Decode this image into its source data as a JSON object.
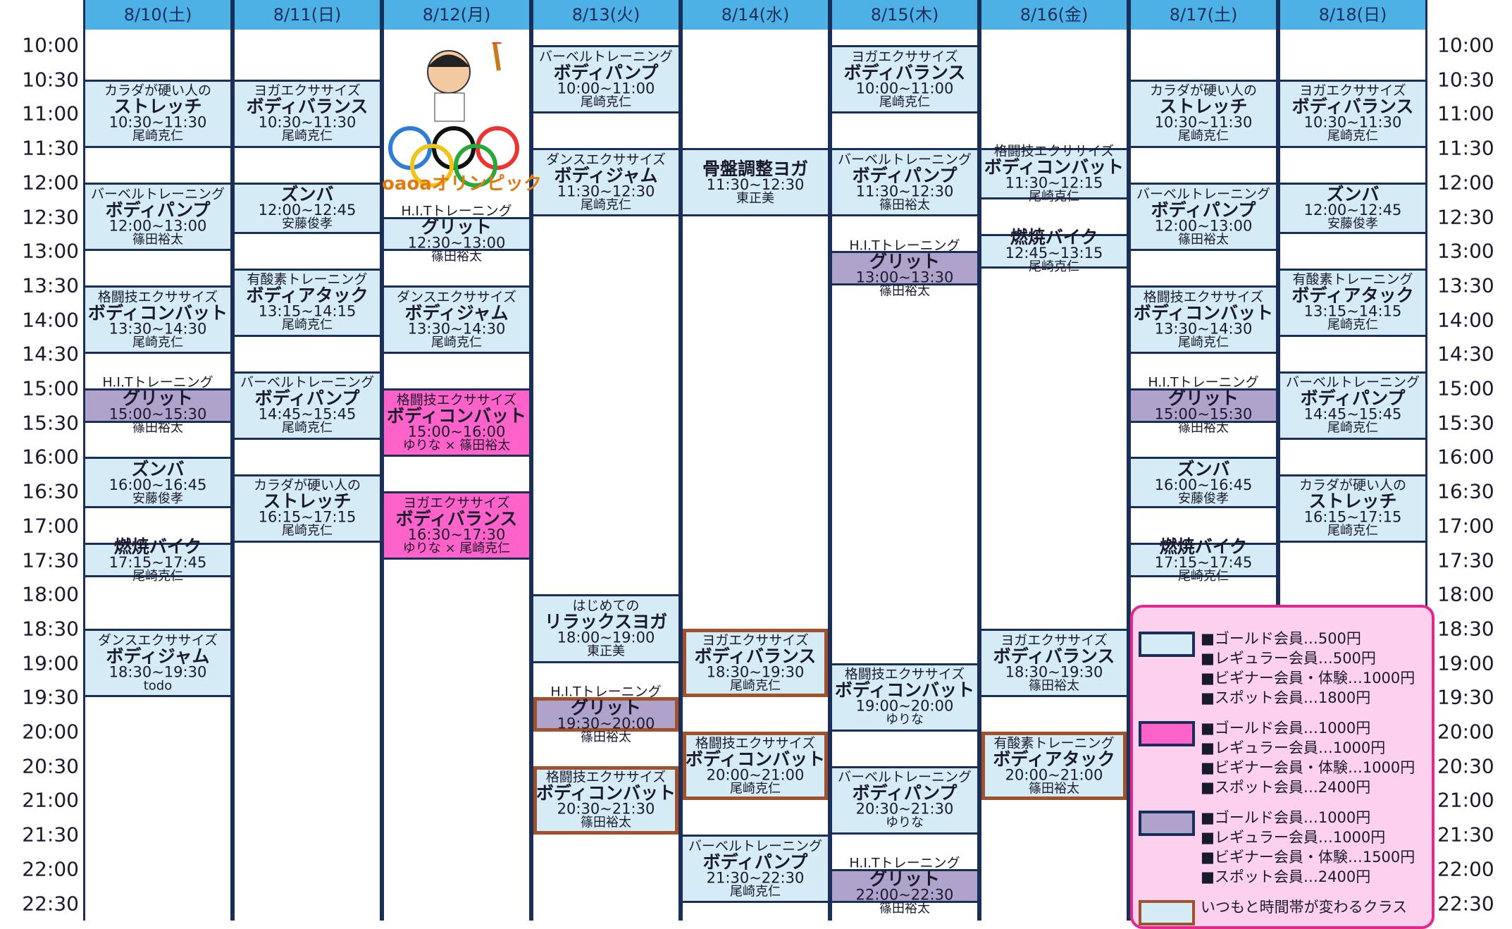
{
  "times": [
    "10:00",
    "10:30",
    "11:00",
    "11:30",
    "12:00",
    "12:30",
    "13:00",
    "13:30",
    "14:00",
    "14:30",
    "15:00",
    "15:30",
    "16:00",
    "16:30",
    "17:00",
    "17:30",
    "18:00",
    "18:30",
    "19:00",
    "19:30",
    "20:00",
    "20:30",
    "21:00",
    "21:30",
    "22:00",
    "22:30"
  ],
  "days": [
    {
      "date": "8/10(土)",
      "classes": [
        {
          "category": "カラダが硬い人の",
          "name": "ストレッチ",
          "time": "10:30~11:30",
          "instructor": "尾崎克仁",
          "color": "blue"
        },
        {
          "category": "バーベルトレーニング",
          "name": "ボディパンプ",
          "time": "12:00~13:00",
          "instructor": "篠田裕太",
          "color": "blue"
        },
        {
          "category": "格闘技エクササイズ",
          "name": "ボディコンバット",
          "time": "13:30~14:30",
          "instructor": "尾崎克仁",
          "color": "blue"
        },
        {
          "category": "H.I.Tトレーニング",
          "name": "グリット",
          "time": "15:00~15:30",
          "instructor": "篠田裕太",
          "color": "purple"
        },
        {
          "name": "ズンバ",
          "time": "16:00~16:45",
          "instructor": "安藤俊孝",
          "color": "blue"
        },
        {
          "name": "燃焼バイク",
          "time": "17:15~17:45",
          "instructor": "尾崎克仁",
          "color": "blue"
        },
        {
          "category": "ダンスエクササイズ",
          "name": "ボディジャム",
          "time": "18:30~19:30",
          "instructor": "todo",
          "color": "blue"
        }
      ]
    },
    {
      "date": "8/11(日)",
      "classes": [
        {
          "category": "ヨガエクササイズ",
          "name": "ボディバランス",
          "time": "10:30~11:30",
          "instructor": "尾崎克仁",
          "color": "blue"
        },
        {
          "name": "ズンバ",
          "time": "12:00~12:45",
          "instructor": "安藤俊孝",
          "color": "blue"
        },
        {
          "category": "有酸素トレーニング",
          "name": "ボディアタック",
          "time": "13:15~14:15",
          "instructor": "尾崎克仁",
          "color": "blue"
        },
        {
          "category": "バーベルトレーニング",
          "name": "ボディパンプ",
          "time": "14:45~15:45",
          "instructor": "尾崎克仁",
          "color": "blue"
        },
        {
          "category": "カラダが硬い人の",
          "name": "ストレッチ",
          "time": "16:15~17:15",
          "instructor": "尾崎克仁",
          "color": "blue"
        }
      ]
    },
    {
      "date": "8/12(月)",
      "event": {
        "label": "oaoaオリンピック"
      },
      "classes": [
        {
          "category": "H.I.Tトレーニング",
          "name": "グリット",
          "time": "12:30~13:00",
          "instructor": "篠田裕太",
          "color": "blue"
        },
        {
          "category": "ダンスエクササイズ",
          "name": "ボディジャム",
          "time": "13:30~14:30",
          "instructor": "尾崎克仁",
          "color": "blue"
        },
        {
          "category": "格闘技エクササイズ",
          "name": "ボディコンバット",
          "time": "15:00~16:00",
          "instructor": "ゆりな × 篠田裕太",
          "color": "pink"
        },
        {
          "category": "ヨガエクササイズ",
          "name": "ボディバランス",
          "time": "16:30~17:30",
          "instructor": "ゆりな × 尾崎克仁",
          "color": "pink"
        }
      ]
    },
    {
      "date": "8/13(火)",
      "classes": [
        {
          "category": "バーベルトレーニング",
          "name": "ボディパンプ",
          "time": "10:00~11:00",
          "instructor": "尾崎克仁",
          "color": "blue"
        },
        {
          "category": "ダンスエクササイズ",
          "name": "ボディジャム",
          "time": "11:30~12:30",
          "instructor": "尾崎克仁",
          "color": "blue"
        },
        {
          "category": "はじめての",
          "name": "リラックスヨガ",
          "time": "18:00~19:00",
          "instructor": "東正美",
          "color": "blue"
        },
        {
          "category": "H.I.Tトレーニング",
          "name": "グリット",
          "time": "19:30~20:00",
          "instructor": "篠田裕太",
          "color": "purple",
          "changed": true
        },
        {
          "category": "格闘技エクササイズ",
          "name": "ボディコンバット",
          "time": "20:30~21:30",
          "instructor": "篠田裕太",
          "color": "blue",
          "changed": true
        }
      ]
    },
    {
      "date": "8/14(水)",
      "classes": [
        {
          "name": "骨盤調整ヨガ",
          "time": "11:30~12:30",
          "instructor": "東正美",
          "color": "blue"
        },
        {
          "category": "ヨガエクササイズ",
          "name": "ボディバランス",
          "time": "18:30~19:30",
          "instructor": "尾崎克仁",
          "color": "blue",
          "changed": true
        },
        {
          "category": "格闘技エクササイズ",
          "name": "ボディコンバット",
          "time": "20:00~21:00",
          "instructor": "尾崎克仁",
          "color": "blue",
          "changed": true
        },
        {
          "category": "バーベルトレーニング",
          "name": "ボディパンプ",
          "time": "21:30~22:30",
          "instructor": "尾崎克仁",
          "color": "blue"
        }
      ]
    },
    {
      "date": "8/15(木)",
      "classes": [
        {
          "category": "ヨガエクササイズ",
          "name": "ボディバランス",
          "time": "10:00~11:00",
          "instructor": "尾崎克仁",
          "color": "blue"
        },
        {
          "category": "バーベルトレーニング",
          "name": "ボディパンプ",
          "time": "11:30~12:30",
          "instructor": "篠田裕太",
          "color": "blue"
        },
        {
          "category": "H.I.Tトレーニング",
          "name": "グリット",
          "time": "13:00~13:30",
          "instructor": "篠田裕太",
          "color": "purple"
        },
        {
          "category": "格闘技エクササイズ",
          "name": "ボディコンバット",
          "time": "19:00~20:00",
          "instructor": "ゆりな",
          "color": "blue"
        },
        {
          "category": "バーベルトレーニング",
          "name": "ボディパンプ",
          "time": "20:30~21:30",
          "instructor": "ゆりな",
          "color": "blue"
        },
        {
          "category": "H.I.Tトレーニング",
          "name": "グリット",
          "time": "22:00~22:30",
          "instructor": "篠田裕太",
          "color": "purple"
        }
      ]
    },
    {
      "date": "8/16(金)",
      "classes": [
        {
          "category": "格闘技エクササイズ",
          "name": "ボディコンバット",
          "time": "11:30~12:15",
          "instructor": "尾崎克仁",
          "color": "blue"
        },
        {
          "name": "燃焼バイク",
          "time": "12:45~13:15",
          "instructor": "尾崎克仁",
          "color": "blue"
        },
        {
          "category": "ヨガエクササイズ",
          "name": "ボディバランス",
          "time": "18:30~19:30",
          "instructor": "篠田裕太",
          "color": "blue"
        },
        {
          "category": "有酸素トレーニング",
          "name": "ボディアタック",
          "time": "20:00~21:00",
          "instructor": "篠田裕太",
          "color": "blue",
          "changed": true
        }
      ]
    },
    {
      "date": "8/17(土)",
      "classes": [
        {
          "category": "カラダが硬い人の",
          "name": "ストレッチ",
          "time": "10:30~11:30",
          "instructor": "尾崎克仁",
          "color": "blue"
        },
        {
          "category": "バーベルトレーニング",
          "name": "ボディパンプ",
          "time": "12:00~13:00",
          "instructor": "篠田裕太",
          "color": "blue"
        },
        {
          "category": "格闘技エクササイズ",
          "name": "ボディコンバット",
          "time": "13:30~14:30",
          "instructor": "尾崎克仁",
          "color": "blue"
        },
        {
          "category": "H.I.Tトレーニング",
          "name": "グリット",
          "time": "15:00~15:30",
          "instructor": "篠田裕太",
          "color": "purple"
        },
        {
          "name": "ズンバ",
          "time": "16:00~16:45",
          "instructor": "安藤俊孝",
          "color": "blue"
        },
        {
          "name": "燃焼バイク",
          "time": "17:15~17:45",
          "instructor": "尾崎克仁",
          "color": "blue"
        }
      ]
    },
    {
      "date": "8/18(日)",
      "classes": [
        {
          "category": "ヨガエクササイズ",
          "name": "ボディバランス",
          "time": "10:30~11:30",
          "instructor": "尾崎克仁",
          "color": "blue"
        },
        {
          "name": "ズンバ",
          "time": "12:00~12:45",
          "instructor": "安藤俊孝",
          "color": "blue"
        },
        {
          "category": "有酸素トレーニング",
          "name": "ボディアタック",
          "time": "13:15~14:15",
          "instructor": "尾崎克仁",
          "color": "blue"
        },
        {
          "category": "バーベルトレーニング",
          "name": "ボディパンプ",
          "time": "14:45~15:45",
          "instructor": "尾崎克仁",
          "color": "blue"
        },
        {
          "category": "カラダが硬い人の",
          "name": "ストレッチ",
          "time": "16:15~17:15",
          "instructor": "尾崎克仁",
          "color": "blue"
        }
      ]
    }
  ],
  "legend": [
    {
      "color": "blue",
      "lines": [
        "■ゴールド会員…500円",
        "■レギュラー会員…500円",
        "■ビギナー会員・体験…1000円",
        "■スポット会員…1800円"
      ]
    },
    {
      "color": "pink",
      "lines": [
        "■ゴールド会員…1000円",
        "■レギュラー会員…1000円",
        "■ビギナー会員・体験…1000円",
        "■スポット会員…2400円"
      ]
    },
    {
      "color": "purple",
      "lines": [
        "■ゴールド会員…1000円",
        "■レギュラー会員…1000円",
        "■ビギナー会員・体験…1500円",
        "■スポット会員…2400円"
      ]
    },
    {
      "color": "blue",
      "changed": true,
      "lines": [
        "いつもと時間帯が変わるクラス"
      ]
    }
  ]
}
